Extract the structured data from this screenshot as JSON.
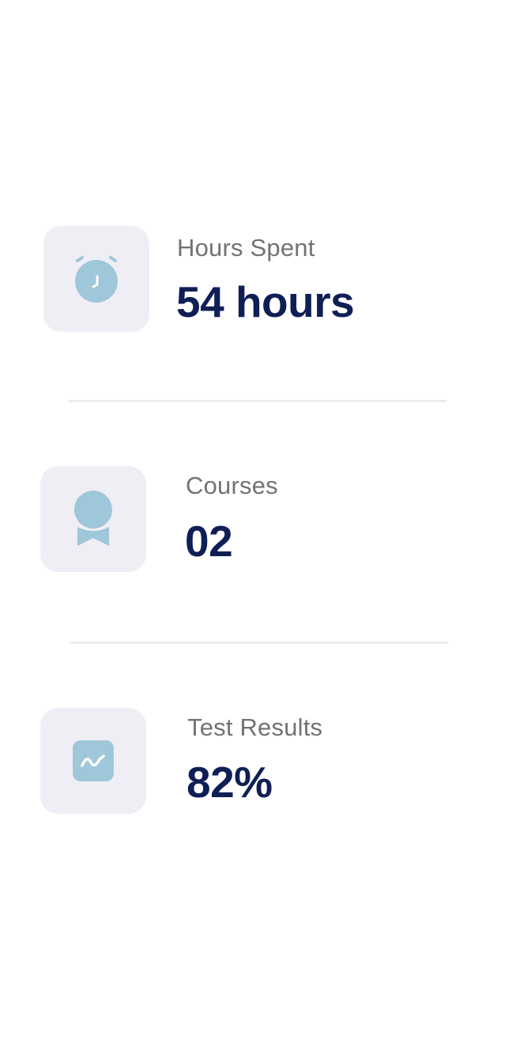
{
  "stats": [
    {
      "label": "Hours Spent",
      "value": "54 hours",
      "icon": "alarm-clock-icon"
    },
    {
      "label": "Courses",
      "value": "02",
      "icon": "award-ribbon-icon"
    },
    {
      "label": "Test Results",
      "value": "82%",
      "icon": "chart-trend-icon"
    }
  ],
  "colors": {
    "icon_background": "#f0eef5",
    "icon_accent": "#9ec7d9",
    "label_text": "#727272",
    "value_text": "#0f1f55",
    "divider": "#ececec"
  }
}
